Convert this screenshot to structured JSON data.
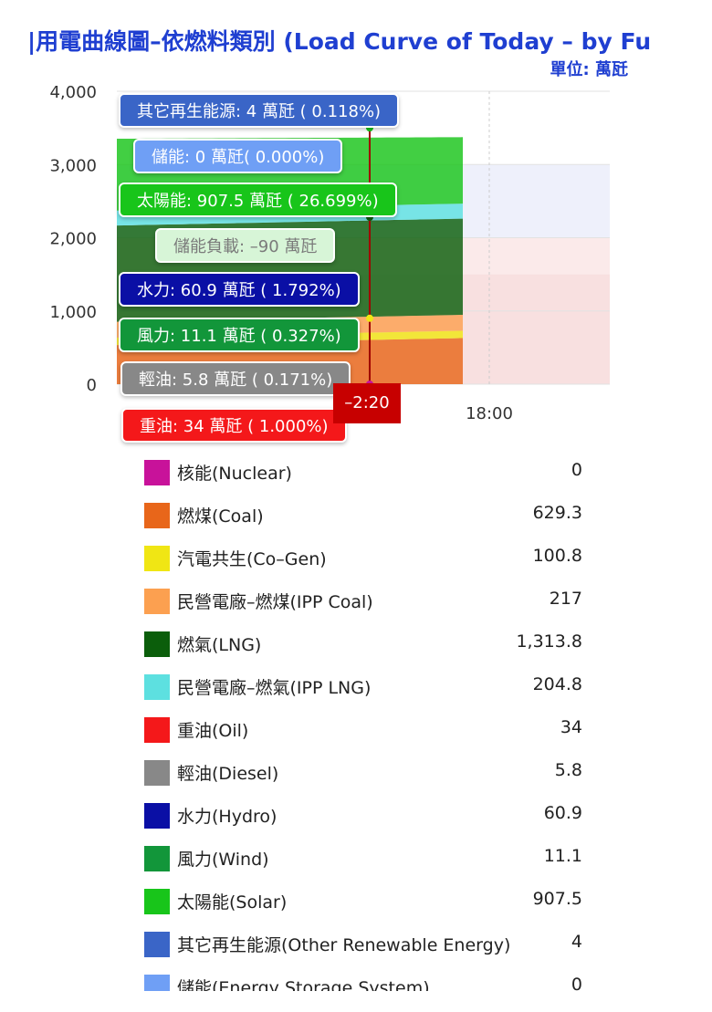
{
  "title": "|用電曲線圖–依燃料類別 (Load Curve of Today – by Fu",
  "unit": "單位: 萬瓩",
  "cursor_label": "–2:20",
  "tooltips": [
    {
      "label": "其它再生能源: 4 萬瓩 ( 0.118%)",
      "color": "#3a65c7"
    },
    {
      "label": "儲能: 0 萬瓩( 0.000%)",
      "color": "#6f9ff5"
    },
    {
      "label": "太陽能: 907.5 萬瓩 ( 26.699%)",
      "color": "#18c51a"
    },
    {
      "label": "儲能負載: –90 萬瓩",
      "color": "#d7f5d7"
    },
    {
      "label": "水力: 60.9 萬瓩 ( 1.792%)",
      "color": "#0a0fa5"
    },
    {
      "label": "風力: 11.1 萬瓩 ( 0.327%)",
      "color": "#12963a"
    },
    {
      "label": "輕油: 5.8 萬瓩 ( 0.171%)",
      "color": "#888888"
    },
    {
      "label": "重油: 34 萬瓩 ( 1.000%)",
      "color": "#f4181a"
    }
  ],
  "chart_data": {
    "type": "area",
    "title": "|用電曲線圖–依燃料類別 (Load Curve of Today – by Fu",
    "ylabel": "單位: 萬瓩",
    "ylim": [
      0,
      4000
    ],
    "yticks": [
      "4,000",
      "3,000",
      "2,000",
      "1,000",
      "0"
    ],
    "xticks": [
      "18:00"
    ],
    "stacked_series": [
      {
        "name": "燃煤(Coal)",
        "value": 629.3,
        "color": "#e8661a"
      },
      {
        "name": "汽電共生(Co-Gen)",
        "value": 100.8,
        "color": "#f0e614"
      },
      {
        "name": "民營電廠-燃煤(IPP Coal)",
        "value": 217,
        "color": "#fca050"
      },
      {
        "name": "燃氣(LNG)",
        "value": 1313.8,
        "color": "#0b5e0b"
      },
      {
        "name": "民營電廠-燃氣(IPP LNG)",
        "value": 204.8,
        "color": "#5de0e0"
      },
      {
        "name": "太陽能(Solar)",
        "value": 907.5,
        "color": "#18c51a"
      }
    ]
  },
  "legend": [
    {
      "name": "核能(Nuclear)",
      "value": "0",
      "color": "#c8129a"
    },
    {
      "name": "燃煤(Coal)",
      "value": "629.3",
      "color": "#e8661a"
    },
    {
      "name": "汽電共生(Co–Gen)",
      "value": "100.8",
      "color": "#f0e614"
    },
    {
      "name": "民營電廠–燃煤(IPP Coal)",
      "value": "217",
      "color": "#fca050"
    },
    {
      "name": "燃氣(LNG)",
      "value": "1,313.8",
      "color": "#0b5e0b"
    },
    {
      "name": "民營電廠–燃氣(IPP LNG)",
      "value": "204.8",
      "color": "#5de0e0"
    },
    {
      "name": "重油(Oil)",
      "value": "34",
      "color": "#f4181a"
    },
    {
      "name": "輕油(Diesel)",
      "value": "5.8",
      "color": "#888888"
    },
    {
      "name": "水力(Hydro)",
      "value": "60.9",
      "color": "#0a0fa5"
    },
    {
      "name": "風力(Wind)",
      "value": "11.1",
      "color": "#12963a"
    },
    {
      "name": "太陽能(Solar)",
      "value": "907.5",
      "color": "#18c51a"
    },
    {
      "name": "其它再生能源(Other Renewable Energy)",
      "value": "4",
      "color": "#3a65c7"
    },
    {
      "name": "儲能(Energy Storage System)",
      "value": "0",
      "color": "#6f9ff5"
    }
  ]
}
